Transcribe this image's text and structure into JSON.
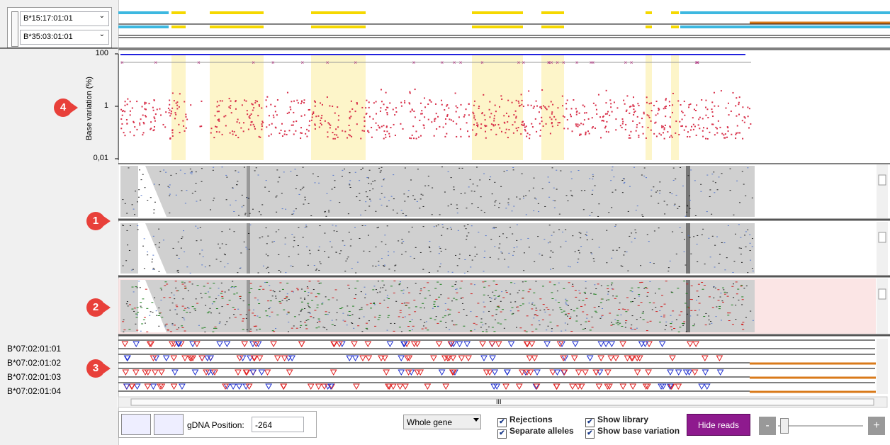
{
  "haplotypes": [
    "B*15:17:01:01",
    "B*35:03:01:01"
  ],
  "plot": {
    "y_axis_label": "Base variation (%)",
    "yticks": [
      "100",
      "1",
      "0,01"
    ]
  },
  "markers": [
    {
      "label": "4"
    },
    {
      "label": "1"
    },
    {
      "label": "2"
    },
    {
      "label": "3"
    }
  ],
  "alleles": [
    "B*07:02:01:01",
    "B*07:02:01:02",
    "B*07:02:01:03",
    "B*07:02:01:04"
  ],
  "scroll_grip": "III",
  "toolbar": {
    "gdna_label": "gDNA Position:",
    "gdna_value": "-264",
    "region": "Whole gene",
    "checkboxes": [
      {
        "label": "Rejections",
        "checked": true
      },
      {
        "label": "Separate alleles",
        "checked": true
      },
      {
        "label": "Show library",
        "checked": true
      },
      {
        "label": "Show base variation",
        "checked": true
      }
    ],
    "hide_reads": "Hide reads",
    "zoom_out": "-",
    "zoom_in": "+"
  }
}
